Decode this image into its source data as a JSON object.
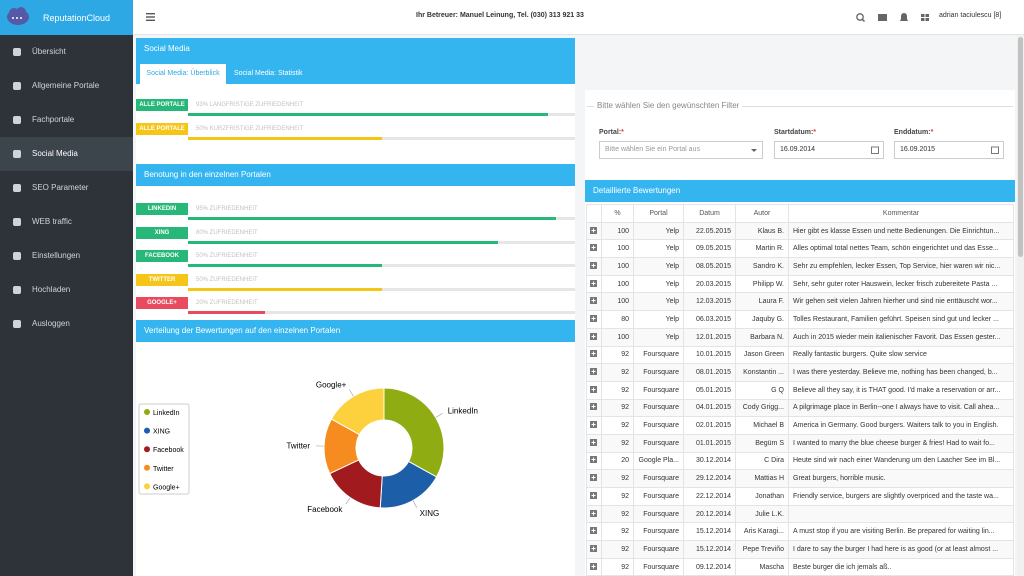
{
  "sidebar": {
    "brand": "ReputationCloud",
    "active": 3,
    "items": [
      "Übersicht",
      "Allgemeine Portale",
      "Fachportale",
      "Social Media",
      "SEO Parameter",
      "WEB traffic",
      "Einstellungen",
      "Hochladen",
      "Ausloggen"
    ]
  },
  "topbar": {
    "contact": "Ihr Betreuer: Manuel Leinung, Tel. (030) 313 921 33",
    "user": "adrian taciulescu [8]"
  },
  "social_media": {
    "title": "Social Media",
    "tabs": [
      "Social Media: Überblick",
      "Social Media: Statistik"
    ],
    "overall": [
      {
        "badge": "ALLE PORTALE",
        "text": "93% LANGFRISTIGE ZUFRIEDENHEIT",
        "value": 93,
        "color": "#26b779"
      },
      {
        "badge": "ALLE PORTALE",
        "text": "50% KURZFRISTIGE ZUFRIEDENHEIT",
        "value": 50,
        "color": "#f5c518"
      }
    ],
    "portals_title": "Benotung in den einzelnen Portalen",
    "portals": [
      {
        "badge": "LINKEDIN",
        "text": "95% ZUFRIEDENHEIT",
        "value": 95,
        "color": "#26b779"
      },
      {
        "badge": "XING",
        "text": "80% ZUFRIEDENHEIT",
        "value": 80,
        "color": "#26b779"
      },
      {
        "badge": "FACEBOOK",
        "text": "50% ZUFRIEDENHEIT",
        "value": 50,
        "color": "#26b779"
      },
      {
        "badge": "TWITTER",
        "text": "50% ZUFRIEDENHEIT",
        "value": 50,
        "color": "#f5c518"
      },
      {
        "badge": "GOOGLE+",
        "text": "20% ZUFRIEDENHEIT",
        "value": 20,
        "color": "#e84a5f"
      }
    ]
  },
  "chart_data": {
    "type": "pie",
    "title": "Verteilung der Bewertungen auf den einzelnen Portalen",
    "categories": [
      "LinkedIn",
      "XING",
      "Facebook",
      "Twitter",
      "Google+"
    ],
    "values": [
      33,
      18,
      17,
      15,
      17
    ],
    "colors": [
      "#8fac12",
      "#1d5ea8",
      "#a11a1e",
      "#f68b1f",
      "#fdd13d"
    ]
  },
  "filter": {
    "legend": "Bitte wählen Sie den gewünschten Filter",
    "fields": [
      {
        "label": "Portal:",
        "marker": "*",
        "value": "Bitte wählen Sie ein Portal aus"
      },
      {
        "label": "Startdatum:",
        "marker": "*",
        "value": "16.09.2014"
      },
      {
        "label": "Enddatum:",
        "marker": "*",
        "value": "16.09.2015"
      }
    ]
  },
  "reviews": {
    "title": "Detaillierte Bewertungen",
    "columns": [
      "%",
      "Portal",
      "Datum",
      "Autor",
      "Kommentar"
    ],
    "rows": [
      [
        100,
        "Yelp",
        "22.05.2015",
        "Klaus B.",
        "Hier gibt es klasse Essen und nette Bedienungen. Die Einrichtun..."
      ],
      [
        100,
        "Yelp",
        "09.05.2015",
        "Martin R.",
        "Alles optimal total nettes Team, schön eingerichtet und das Esse..."
      ],
      [
        100,
        "Yelp",
        "08.05.2015",
        "Sandro K.",
        "Sehr zu empfehlen, lecker Essen, Top Service, hier waren wir nic..."
      ],
      [
        100,
        "Yelp",
        "20.03.2015",
        "Philipp W.",
        "Sehr, sehr guter roter Hauswein, lecker frisch zubereitete Pasta ..."
      ],
      [
        100,
        "Yelp",
        "12.03.2015",
        "Laura F.",
        "Wir gehen seit vielen Jahren hierher und sind nie enttäuscht wor..."
      ],
      [
        80,
        "Yelp",
        "06.03.2015",
        "Jaquby G.",
        "Tolles Restaurant, Familien geführt. Speisen sind gut und lecker ..."
      ],
      [
        100,
        "Yelp",
        "12.01.2015",
        "Barbara N.",
        "Auch in 2015 wieder mein italienischer Favorit. Das Essen gester..."
      ],
      [
        92,
        "Foursquare",
        "10.01.2015",
        "Jason Green",
        "Really fantastic burgers. Quite slow service"
      ],
      [
        92,
        "Foursquare",
        "08.01.2015",
        "Konstantin ...",
        "I was there yesterday. Believe me, nothing has been changed, b..."
      ],
      [
        92,
        "Foursquare",
        "05.01.2015",
        "G Q",
        "Believe all they say, it is THAT good. I'd make a reservation or arr..."
      ],
      [
        92,
        "Foursquare",
        "04.01.2015",
        "Cody Grigg...",
        "A pilgrimage place in Berlin--one I always have to visit. Call ahea..."
      ],
      [
        92,
        "Foursquare",
        "02.01.2015",
        "Michael B",
        "America in Germany. Good burgers. Waiters talk to you in English."
      ],
      [
        92,
        "Foursquare",
        "01.01.2015",
        "Begüm S",
        "I wanted to marry the blue cheese burger & fries! Had to wait fo..."
      ],
      [
        20,
        "Google Pla...",
        "30.12.2014",
        "C Dira",
        "Heute sind wir nach einer Wanderung um den Laacher See im Bl..."
      ],
      [
        92,
        "Foursquare",
        "29.12.2014",
        "Mattias H",
        "Great burgers, horrible music."
      ],
      [
        92,
        "Foursquare",
        "22.12.2014",
        "Jonathan",
        "Friendly service, burgers are slightly overpriced and the taste wa..."
      ],
      [
        92,
        "Foursquare",
        "20.12.2014",
        "Julie L.K.",
        null
      ],
      [
        92,
        "Foursquare",
        "15.12.2014",
        "Aris Karagi...",
        "A must stop if you are visiting Berlin. Be prepared for waiting lin..."
      ],
      [
        92,
        "Foursquare",
        "15.12.2014",
        "Pepe Treviño",
        "I dare to say the burger I had here is as good (or at least almost ..."
      ],
      [
        92,
        "Foursquare",
        "09.12.2014",
        "Mascha",
        "Beste burger die ich jemals aß.."
      ]
    ]
  }
}
